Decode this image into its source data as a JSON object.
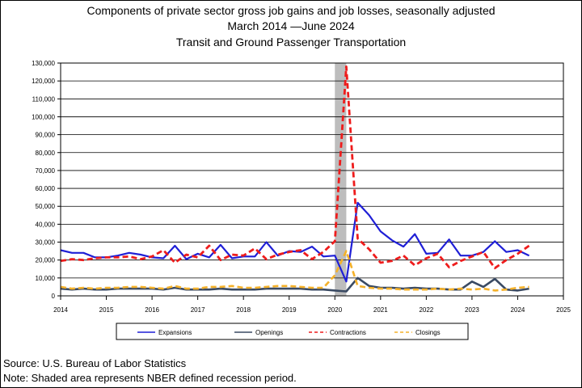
{
  "title": "Components of private sector gross job gains and job losses, seasonally adjusted",
  "subtitle": "March 2014 —June 2024",
  "subtitle2": "Transit and Ground Passenger Transportation",
  "source": "Source: U.S. Bureau of Labor Statistics",
  "note": "Note: Shaded area represents NBER defined recession period.",
  "colors": {
    "expansions": "#1f1fd6",
    "openings": "#3a4a63",
    "contractions": "#ee1c1c",
    "closings": "#f4b12a",
    "recession": "#bdbdbd"
  },
  "chart_data": {
    "type": "line",
    "x_axis": {
      "min": 2014,
      "max": 2025,
      "ticks": [
        "2014",
        "2015",
        "2016",
        "2017",
        "2018",
        "2019",
        "2020",
        "2021",
        "2022",
        "2023",
        "2024",
        "2025"
      ]
    },
    "y_axis": {
      "min": 0,
      "max": 130000,
      "ticks": [
        "0",
        "10,000",
        "20,000",
        "30,000",
        "40,000",
        "50,000",
        "60,000",
        "70,000",
        "80,000",
        "90,000",
        "100,000",
        "110,000",
        "120,000",
        "130,000"
      ]
    },
    "grid": "horizontal",
    "legend_position": "bottom",
    "recession": {
      "start": 2020.0,
      "end": 2020.25
    },
    "x": [
      2014.0,
      2014.25,
      2014.5,
      2014.75,
      2015.0,
      2015.25,
      2015.5,
      2015.75,
      2016.0,
      2016.25,
      2016.5,
      2016.75,
      2017.0,
      2017.25,
      2017.5,
      2017.75,
      2018.0,
      2018.25,
      2018.5,
      2018.75,
      2019.0,
      2019.25,
      2019.5,
      2019.75,
      2020.0,
      2020.25,
      2020.5,
      2020.75,
      2021.0,
      2021.25,
      2021.5,
      2021.75,
      2022.0,
      2022.25,
      2022.5,
      2022.75,
      2023.0,
      2023.25,
      2023.5,
      2023.75,
      2024.0,
      2024.25
    ],
    "series": [
      {
        "name": "Expansions",
        "style": "solid",
        "values": [
          25500,
          24000,
          24000,
          21500,
          21500,
          22500,
          24000,
          23000,
          21500,
          21000,
          28000,
          20500,
          23500,
          21500,
          28500,
          21000,
          22000,
          22000,
          30000,
          22500,
          25000,
          24500,
          27500,
          22000,
          22500,
          8000,
          52000,
          45000,
          36000,
          31000,
          27500,
          34500,
          23500,
          24000,
          31500,
          22500,
          22500,
          24500,
          30500,
          24500,
          25500,
          22500
        ]
      },
      {
        "name": "Openings",
        "style": "solid",
        "values": [
          4000,
          3500,
          4000,
          3500,
          3500,
          4000,
          4000,
          4000,
          4000,
          3500,
          4500,
          3500,
          3500,
          3500,
          4000,
          3500,
          3500,
          3500,
          4000,
          4000,
          4000,
          4000,
          3500,
          3500,
          3000,
          2500,
          10000,
          5500,
          4500,
          4500,
          4000,
          4500,
          4000,
          4000,
          3500,
          3500,
          8000,
          5000,
          9500,
          3500,
          3000,
          4000
        ]
      },
      {
        "name": "Contractions",
        "style": "dashed",
        "values": [
          19500,
          20500,
          20000,
          21000,
          21500,
          21500,
          22000,
          20500,
          22000,
          25500,
          18500,
          23000,
          21500,
          28000,
          20000,
          23000,
          22500,
          26500,
          20500,
          23000,
          24500,
          25500,
          20500,
          24500,
          30500,
          128000,
          32000,
          26000,
          18500,
          19500,
          22500,
          17000,
          21000,
          23500,
          16000,
          19500,
          22000,
          24500,
          15500,
          20000,
          23500,
          28000
        ]
      },
      {
        "name": "Closings",
        "style": "dashed",
        "values": [
          5000,
          4000,
          4500,
          4000,
          4500,
          4500,
          5000,
          5000,
          4500,
          4000,
          5500,
          4000,
          4000,
          5000,
          5000,
          5500,
          4500,
          4500,
          5000,
          5500,
          5500,
          5000,
          4500,
          4500,
          11500,
          25000,
          5500,
          4500,
          4000,
          4000,
          3500,
          3500,
          3500,
          4000,
          3500,
          4000,
          3500,
          4000,
          3000,
          3500,
          4500,
          5000
        ]
      }
    ]
  }
}
